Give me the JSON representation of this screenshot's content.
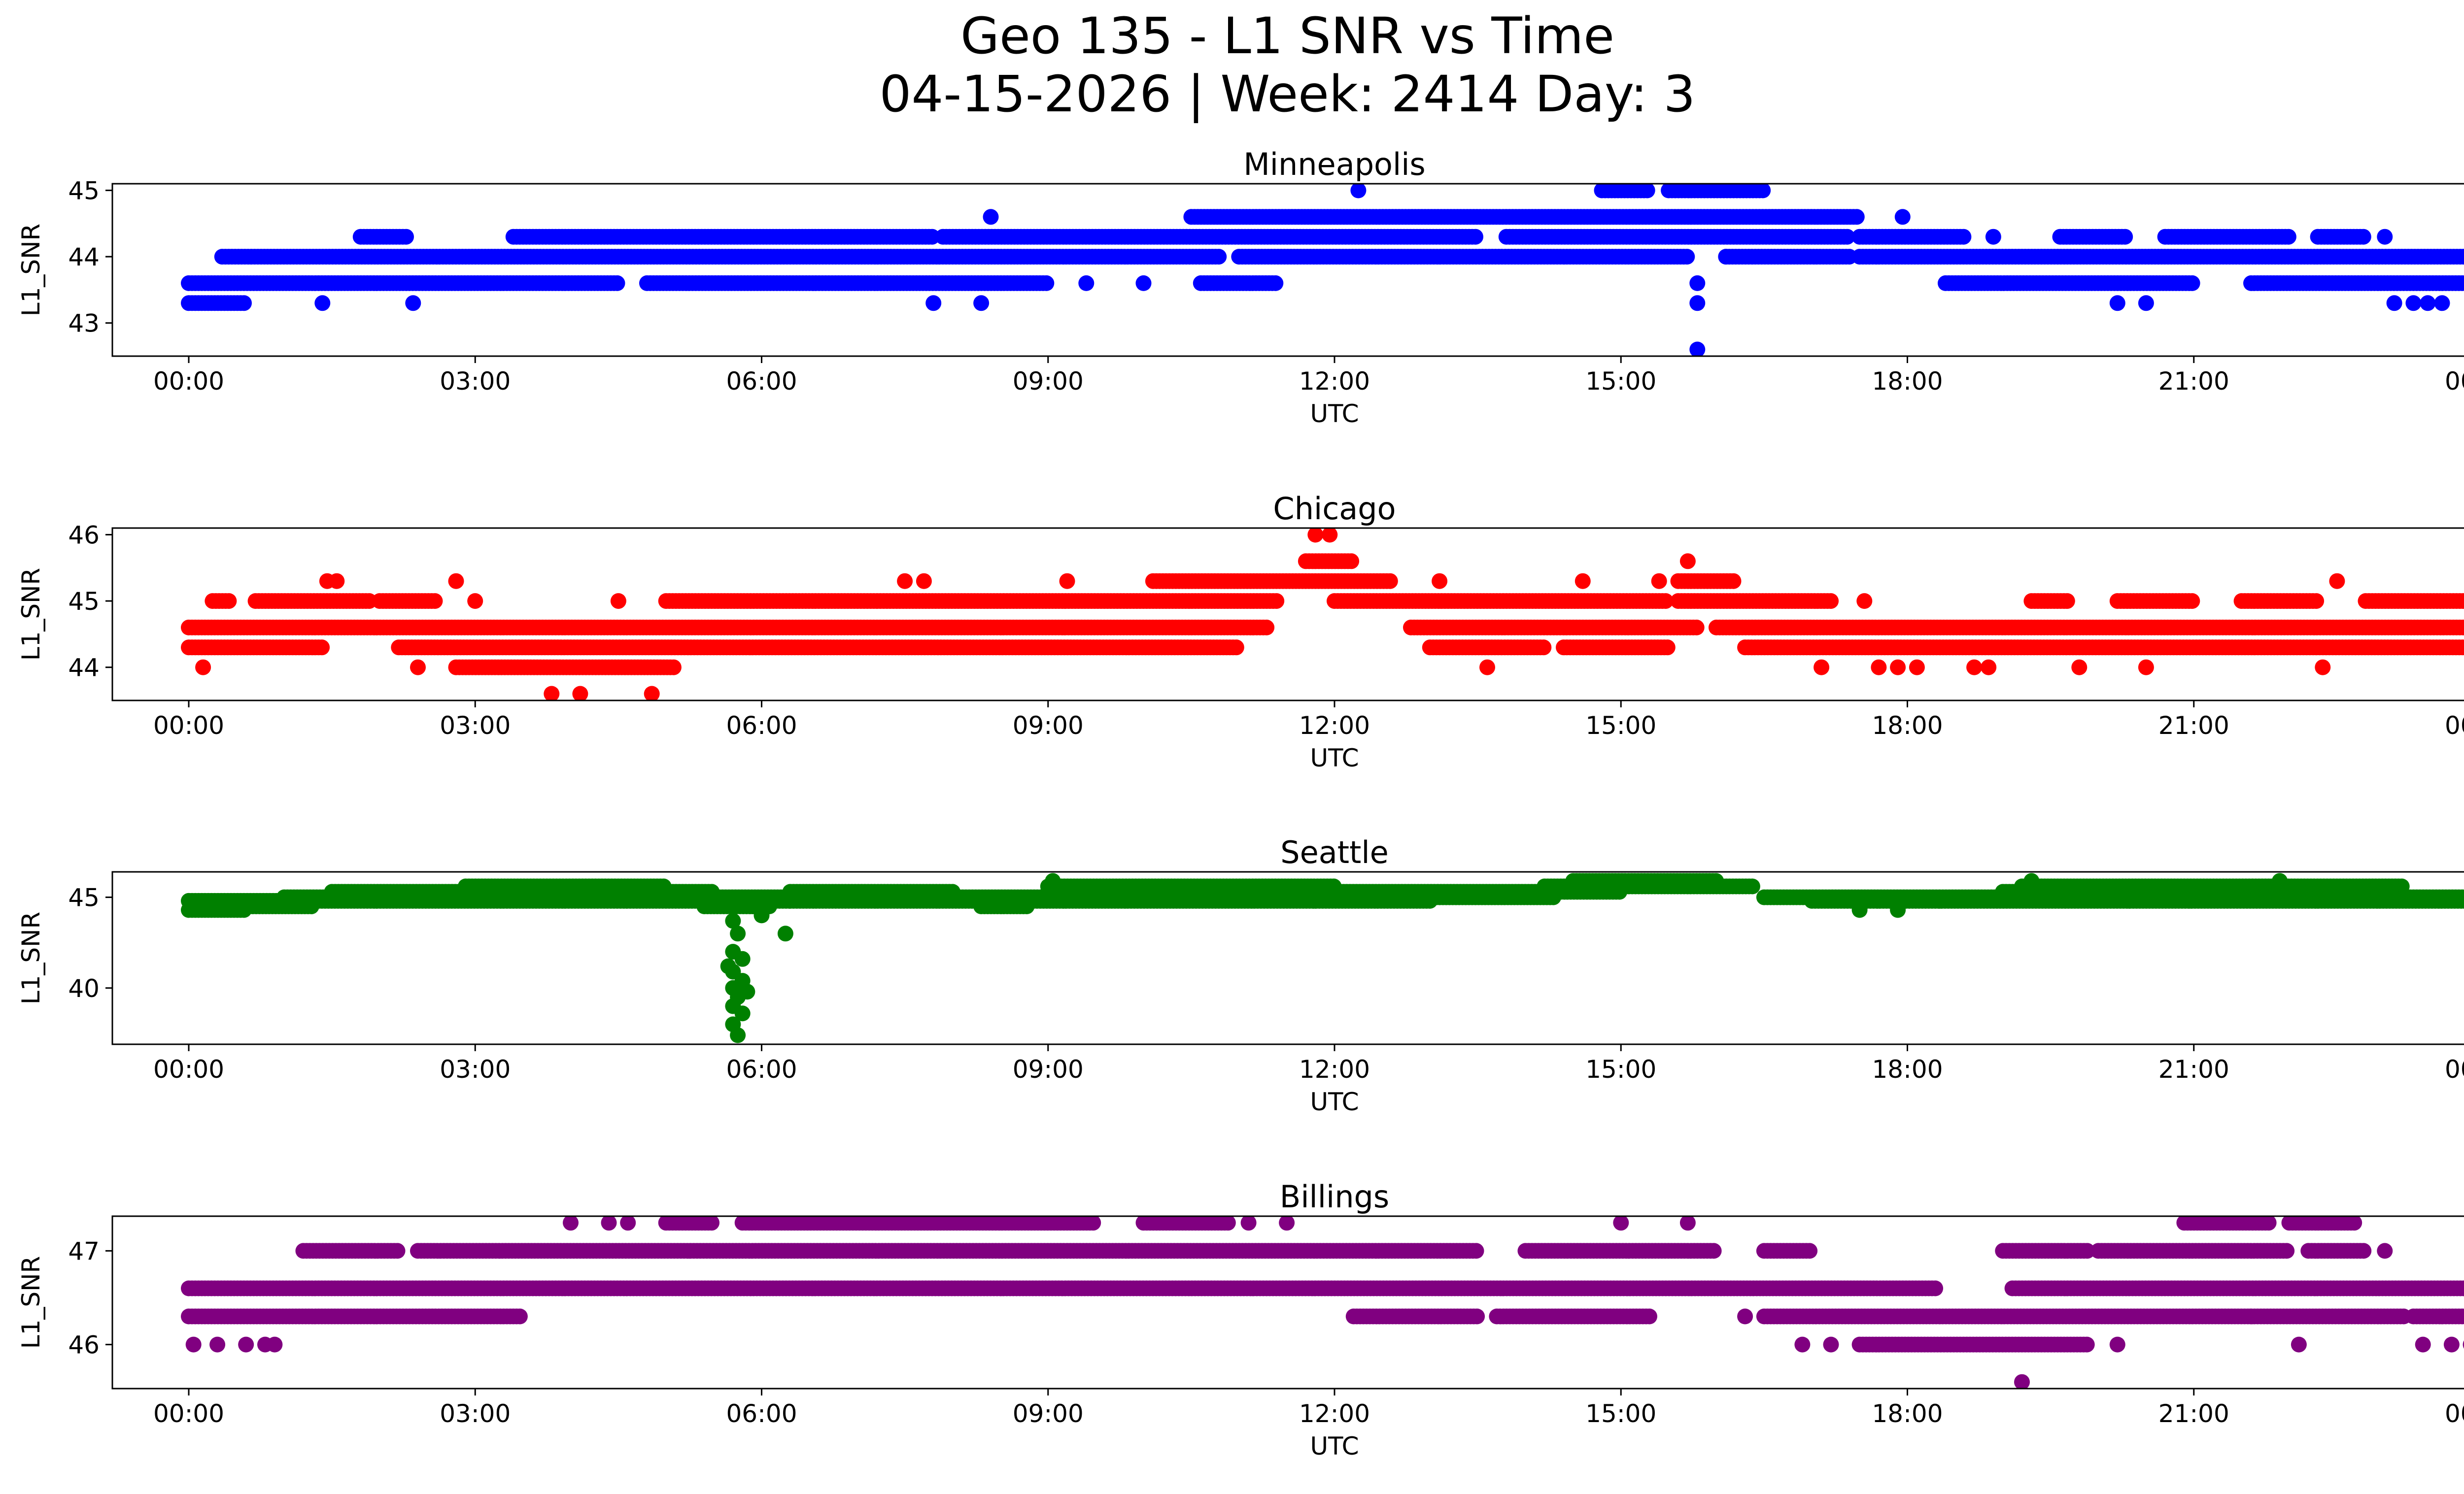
{
  "figure": {
    "title_line1": "Geo 135 - L1 SNR vs Time",
    "title_line2": "04-15-2026 | Week: 2414 Day: 3"
  },
  "chart_data": [
    {
      "type": "scatter",
      "title": "Minneapolis",
      "xlabel": "UTC",
      "ylabel": "L1_SNR",
      "color": "#0000ff",
      "xlim": [
        -0.8,
        24.8
      ],
      "ylim": [
        42.5,
        45.1
      ],
      "x_ticks": [
        0,
        3,
        6,
        9,
        12,
        15,
        18,
        21,
        24
      ],
      "x_tick_labels": [
        "00:00",
        "03:00",
        "06:00",
        "09:00",
        "12:00",
        "15:00",
        "18:00",
        "21:00",
        "00:00"
      ],
      "y_ticks": [
        43,
        44,
        45
      ],
      "y_tick_labels": [
        "43",
        "44",
        "45"
      ],
      "series": [
        {
          "y": 44.0,
          "segments": [
            [
              0.35,
              10.8
            ],
            [
              11.0,
              15.7
            ],
            [
              16.1,
              17.4
            ],
            [
              17.5,
              24.0
            ]
          ]
        },
        {
          "y": 43.6,
          "segments": [
            [
              0.0,
              4.5
            ],
            [
              4.8,
              9.0
            ],
            [
              10.6,
              11.4
            ],
            [
              18.4,
              21.0
            ],
            [
              21.6,
              24.0
            ]
          ]
        },
        {
          "y": 43.3,
          "segments": [
            [
              0.0,
              0.6
            ]
          ]
        },
        {
          "y": 44.3,
          "segments": [
            [
              1.8,
              2.3
            ],
            [
              3.4,
              7.8
            ],
            [
              7.9,
              13.5
            ],
            [
              13.8,
              17.4
            ],
            [
              17.5,
              18.6
            ],
            [
              19.6,
              20.3
            ],
            [
              20.7,
              22.0
            ],
            [
              22.3,
              22.8
            ]
          ]
        },
        {
          "y": 44.6,
          "segments": [
            [
              10.5,
              17.5
            ]
          ]
        },
        {
          "y": 45.0,
          "segments": [
            [
              14.8,
              15.3
            ],
            [
              15.5,
              16.5
            ]
          ]
        }
      ],
      "points": [
        {
          "x": 1.4,
          "y": 43.3
        },
        {
          "x": 2.35,
          "y": 43.3
        },
        {
          "x": 7.8,
          "y": 43.3
        },
        {
          "x": 8.3,
          "y": 43.3
        },
        {
          "x": 20.2,
          "y": 43.3
        },
        {
          "x": 20.5,
          "y": 43.3
        },
        {
          "x": 23.1,
          "y": 43.3
        },
        {
          "x": 23.3,
          "y": 43.3
        },
        {
          "x": 23.45,
          "y": 43.3
        },
        {
          "x": 23.6,
          "y": 43.3
        },
        {
          "x": 24.0,
          "y": 43.3
        },
        {
          "x": 8.4,
          "y": 44.6
        },
        {
          "x": 12.25,
          "y": 45.0
        },
        {
          "x": 16.1,
          "y": 44.0
        },
        {
          "x": 17.95,
          "y": 44.6
        },
        {
          "x": 18.9,
          "y": 44.3
        },
        {
          "x": 23.0,
          "y": 44.3
        },
        {
          "x": 9.4,
          "y": 43.6
        },
        {
          "x": 10.0,
          "y": 43.6
        },
        {
          "x": 15.8,
          "y": 43.6
        },
        {
          "x": 15.8,
          "y": 43.3
        },
        {
          "x": 15.8,
          "y": 42.6
        }
      ]
    },
    {
      "type": "scatter",
      "title": "Chicago",
      "xlabel": "UTC",
      "ylabel": "L1_SNR",
      "color": "#ff0000",
      "xlim": [
        -0.8,
        24.8
      ],
      "ylim": [
        43.5,
        46.1
      ],
      "x_ticks": [
        0,
        3,
        6,
        9,
        12,
        15,
        18,
        21,
        24
      ],
      "x_tick_labels": [
        "00:00",
        "03:00",
        "06:00",
        "09:00",
        "12:00",
        "15:00",
        "18:00",
        "21:00",
        "00:00"
      ],
      "y_ticks": [
        44,
        45,
        46
      ],
      "y_tick_labels": [
        "44",
        "45",
        "46"
      ],
      "series": [
        {
          "y": 44.6,
          "segments": [
            [
              0.0,
              11.3
            ],
            [
              12.8,
              15.8
            ],
            [
              16.0,
              24.0
            ]
          ]
        },
        {
          "y": 44.3,
          "segments": [
            [
              0.0,
              1.4
            ],
            [
              2.2,
              11.0
            ],
            [
              13.0,
              14.2
            ],
            [
              14.4,
              15.5
            ],
            [
              16.3,
              24.0
            ]
          ]
        },
        {
          "y": 45.0,
          "segments": [
            [
              0.25,
              0.45
            ],
            [
              0.7,
              1.9
            ],
            [
              2.0,
              2.6
            ],
            [
              5.0,
              11.4
            ],
            [
              12.0,
              15.5
            ],
            [
              15.6,
              17.2
            ],
            [
              19.3,
              19.7
            ],
            [
              20.2,
              21.0
            ],
            [
              21.5,
              22.3
            ],
            [
              22.8,
              24.0
            ]
          ]
        },
        {
          "y": 44.0,
          "segments": [
            [
              2.8,
              5.1
            ]
          ]
        },
        {
          "y": 45.3,
          "segments": [
            [
              10.1,
              12.6
            ],
            [
              15.6,
              16.2
            ]
          ]
        },
        {
          "y": 45.6,
          "segments": [
            [
              11.7,
              12.2
            ]
          ]
        }
      ],
      "points": [
        {
          "x": 0.15,
          "y": 44.0
        },
        {
          "x": 2.4,
          "y": 44.0
        },
        {
          "x": 1.45,
          "y": 45.3
        },
        {
          "x": 1.55,
          "y": 45.3
        },
        {
          "x": 2.8,
          "y": 45.3
        },
        {
          "x": 3.0,
          "y": 45.0
        },
        {
          "x": 4.5,
          "y": 45.0
        },
        {
          "x": 3.8,
          "y": 43.6
        },
        {
          "x": 4.1,
          "y": 43.6
        },
        {
          "x": 4.85,
          "y": 43.6
        },
        {
          "x": 7.5,
          "y": 45.3
        },
        {
          "x": 7.7,
          "y": 45.3
        },
        {
          "x": 9.2,
          "y": 45.3
        },
        {
          "x": 11.8,
          "y": 46.0
        },
        {
          "x": 11.95,
          "y": 46.0
        },
        {
          "x": 13.1,
          "y": 45.3
        },
        {
          "x": 13.6,
          "y": 44.0
        },
        {
          "x": 14.6,
          "y": 45.3
        },
        {
          "x": 15.4,
          "y": 45.3
        },
        {
          "x": 15.7,
          "y": 45.6
        },
        {
          "x": 17.1,
          "y": 44.0
        },
        {
          "x": 17.55,
          "y": 45.0
        },
        {
          "x": 17.7,
          "y": 44.0
        },
        {
          "x": 17.9,
          "y": 44.0
        },
        {
          "x": 18.1,
          "y": 44.0
        },
        {
          "x": 18.7,
          "y": 44.0
        },
        {
          "x": 18.85,
          "y": 44.0
        },
        {
          "x": 19.8,
          "y": 44.0
        },
        {
          "x": 20.5,
          "y": 44.0
        },
        {
          "x": 22.35,
          "y": 44.0
        },
        {
          "x": 22.5,
          "y": 45.3
        }
      ]
    },
    {
      "type": "scatter",
      "title": "Seattle",
      "xlabel": "UTC",
      "ylabel": "L1_SNR",
      "color": "#008000",
      "xlim": [
        -0.8,
        24.8
      ],
      "ylim": [
        36.9,
        46.4
      ],
      "x_ticks": [
        0,
        3,
        6,
        9,
        12,
        15,
        18,
        21,
        24
      ],
      "x_tick_labels": [
        "00:00",
        "03:00",
        "06:00",
        "09:00",
        "12:00",
        "15:00",
        "18:00",
        "21:00",
        "00:00"
      ],
      "y_ticks": [
        40,
        45
      ],
      "y_tick_labels": [
        "40",
        "45"
      ],
      "series": [
        {
          "y": 44.3,
          "segments": [
            [
              0.0,
              0.6
            ]
          ]
        },
        {
          "y": 44.8,
          "segments": [
            [
              0.0,
              6.3
            ]
          ]
        },
        {
          "y": 44.5,
          "segments": [
            [
              0.4,
              1.3
            ],
            [
              5.4,
              6.1
            ],
            [
              8.3,
              8.8
            ]
          ]
        },
        {
          "y": 45.0,
          "segments": [
            [
              1.0,
              9.0
            ],
            [
              13.0,
              14.3
            ],
            [
              16.5,
              24.0
            ]
          ]
        },
        {
          "y": 45.3,
          "segments": [
            [
              1.5,
              5.5
            ],
            [
              6.3,
              8.0
            ],
            [
              9.0,
              15.0
            ],
            [
              19.0,
              22.5
            ]
          ]
        },
        {
          "y": 45.6,
          "segments": [
            [
              2.9,
              5.0
            ],
            [
              9.0,
              12.0
            ],
            [
              14.2,
              16.4
            ],
            [
              19.2,
              23.2
            ]
          ]
        },
        {
          "y": 44.8,
          "segments": [
            [
              6.3,
              13.0
            ],
            [
              17.0,
              24.0
            ]
          ]
        },
        {
          "y": 45.9,
          "segments": [
            [
              14.5,
              16.0
            ]
          ]
        }
      ],
      "points": [
        {
          "x": 5.7,
          "y": 43.7
        },
        {
          "x": 5.75,
          "y": 43.0
        },
        {
          "x": 5.7,
          "y": 42.0
        },
        {
          "x": 5.8,
          "y": 41.6
        },
        {
          "x": 5.7,
          "y": 40.9
        },
        {
          "x": 5.8,
          "y": 40.4
        },
        {
          "x": 5.7,
          "y": 40.0
        },
        {
          "x": 5.75,
          "y": 39.5
        },
        {
          "x": 5.7,
          "y": 39.0
        },
        {
          "x": 5.8,
          "y": 38.6
        },
        {
          "x": 5.7,
          "y": 38.0
        },
        {
          "x": 5.75,
          "y": 37.4
        },
        {
          "x": 5.85,
          "y": 39.8
        },
        {
          "x": 5.65,
          "y": 41.2
        },
        {
          "x": 6.0,
          "y": 44.0
        },
        {
          "x": 6.25,
          "y": 43.0
        },
        {
          "x": 9.05,
          "y": 45.9
        },
        {
          "x": 19.3,
          "y": 45.9
        },
        {
          "x": 21.9,
          "y": 45.9
        },
        {
          "x": 17.5,
          "y": 44.3
        },
        {
          "x": 17.9,
          "y": 44.3
        }
      ]
    },
    {
      "type": "scatter",
      "title": "Billings",
      "xlabel": "UTC",
      "ylabel": "L1_SNR",
      "color": "#800080",
      "xlim": [
        -0.8,
        24.8
      ],
      "ylim": [
        45.53,
        47.37
      ],
      "x_ticks": [
        0,
        3,
        6,
        9,
        12,
        15,
        18,
        21,
        24
      ],
      "x_tick_labels": [
        "00:00",
        "03:00",
        "06:00",
        "09:00",
        "12:00",
        "15:00",
        "18:00",
        "21:00",
        "00:00"
      ],
      "y_ticks": [
        46,
        47
      ],
      "y_tick_labels": [
        "46",
        "47"
      ],
      "series": [
        {
          "y": 46.6,
          "segments": [
            [
              0.0,
              18.3
            ],
            [
              19.1,
              24.0
            ]
          ]
        },
        {
          "y": 46.3,
          "segments": [
            [
              0.0,
              3.5
            ],
            [
              12.2,
              13.5
            ],
            [
              13.7,
              15.3
            ],
            [
              16.5,
              23.2
            ],
            [
              23.3,
              24.0
            ]
          ]
        },
        {
          "y": 47.0,
          "segments": [
            [
              1.2,
              2.2
            ],
            [
              2.4,
              13.5
            ],
            [
              14.0,
              16.0
            ],
            [
              16.5,
              17.0
            ],
            [
              19.0,
              19.9
            ],
            [
              20.0,
              22.0
            ],
            [
              22.2,
              22.8
            ]
          ]
        },
        {
          "y": 47.3,
          "segments": [
            [
              5.0,
              5.5
            ],
            [
              5.8,
              9.5
            ],
            [
              10.0,
              10.9
            ],
            [
              20.9,
              21.8
            ],
            [
              22.0,
              22.7
            ]
          ]
        },
        {
          "y": 46.0,
          "segments": [
            [
              17.5,
              19.9
            ]
          ]
        }
      ],
      "points": [
        {
          "x": 0.05,
          "y": 46.0
        },
        {
          "x": 0.3,
          "y": 46.0
        },
        {
          "x": 0.6,
          "y": 46.0
        },
        {
          "x": 0.8,
          "y": 46.0
        },
        {
          "x": 0.9,
          "y": 46.0
        },
        {
          "x": 4.0,
          "y": 47.3
        },
        {
          "x": 4.4,
          "y": 47.3
        },
        {
          "x": 4.6,
          "y": 47.3
        },
        {
          "x": 11.1,
          "y": 47.3
        },
        {
          "x": 11.5,
          "y": 47.3
        },
        {
          "x": 15.0,
          "y": 47.3
        },
        {
          "x": 15.7,
          "y": 47.3
        },
        {
          "x": 16.3,
          "y": 46.3
        },
        {
          "x": 16.9,
          "y": 46.0
        },
        {
          "x": 17.2,
          "y": 46.0
        },
        {
          "x": 20.2,
          "y": 46.0
        },
        {
          "x": 21.6,
          "y": 46.3
        },
        {
          "x": 22.1,
          "y": 46.0
        },
        {
          "x": 23.0,
          "y": 47.0
        },
        {
          "x": 23.4,
          "y": 46.0
        },
        {
          "x": 23.7,
          "y": 46.0
        },
        {
          "x": 23.9,
          "y": 46.0
        },
        {
          "x": 19.2,
          "y": 45.6
        }
      ]
    }
  ]
}
